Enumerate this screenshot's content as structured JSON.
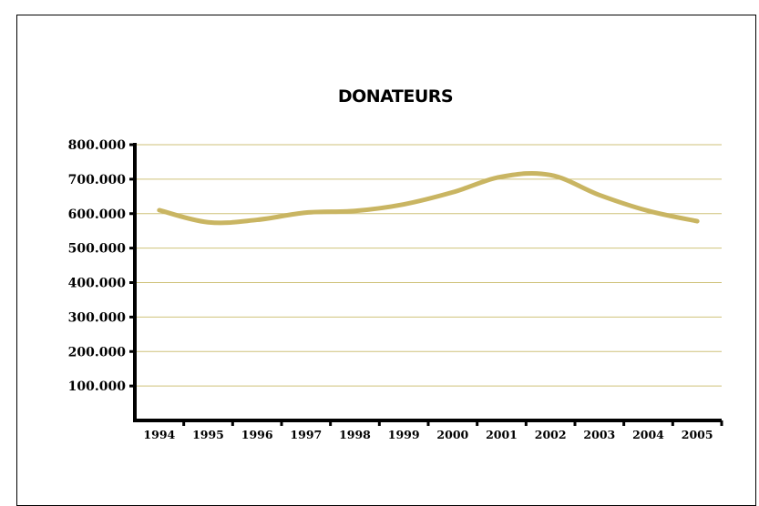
{
  "chart_data": {
    "type": "line",
    "title": "DONATEURS",
    "xlabel": "",
    "ylabel": "",
    "categories": [
      "1994",
      "1995",
      "1996",
      "1997",
      "1998",
      "1999",
      "2000",
      "2001",
      "2002",
      "2003",
      "2004",
      "2005"
    ],
    "series": [
      {
        "values": [
          610000,
          575000,
          582000,
          603000,
          608000,
          627000,
          662000,
          707000,
          712000,
          654000,
          608000,
          578000
        ],
        "color": "#c9b562"
      }
    ],
    "yticks": [
      "100.000",
      "200.000",
      "300.000",
      "400.000",
      "500.000",
      "600.000",
      "700.000",
      "800.000"
    ],
    "ylim": [
      0,
      800000
    ],
    "grid": true,
    "grid_color": "#cfc27a",
    "axis_color": "#000000",
    "legend": "none"
  }
}
